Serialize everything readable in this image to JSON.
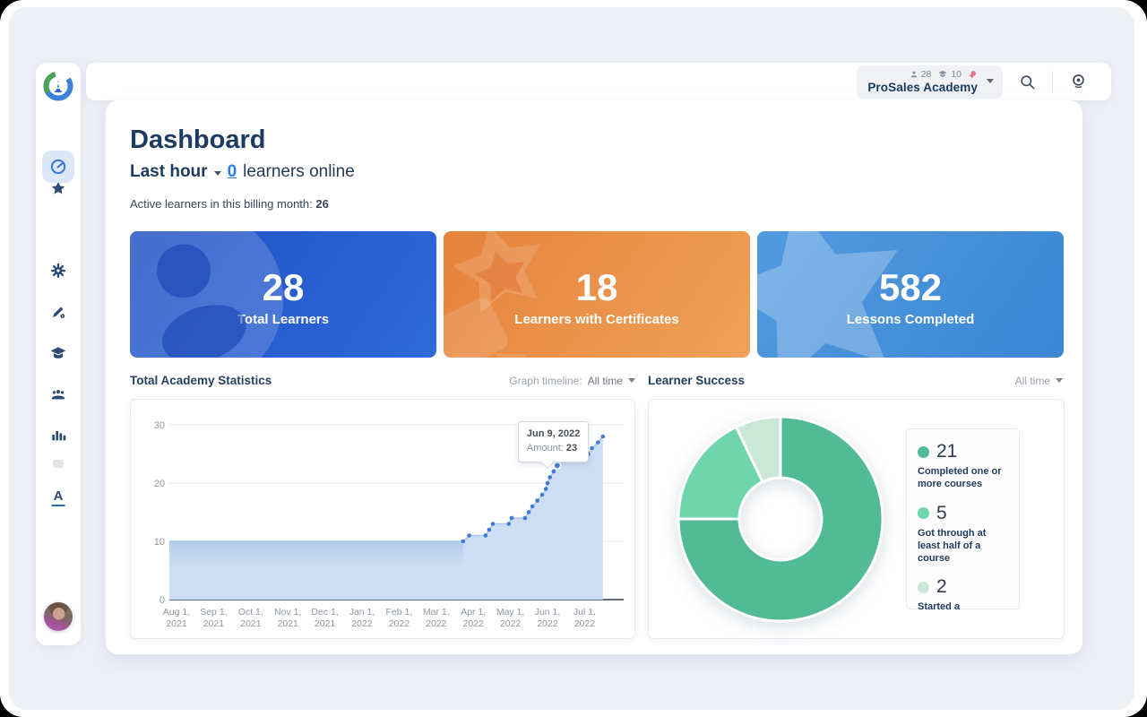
{
  "header": {
    "academy_name": "ProSales Academy",
    "learners_badge": "28",
    "courses_badge": "10",
    "icons": [
      "person-icon",
      "graduation-cap-icon",
      "certificate-ribbon-icon",
      "search-icon",
      "learner-preview-icon"
    ]
  },
  "sidebar": {
    "logo_letter": "A",
    "font_icon_letter": "A",
    "items": [
      {
        "icon": "logo"
      },
      {
        "icon": "star"
      },
      {
        "icon": "dashboard-gauge",
        "active": true
      },
      {
        "icon": "settings-gear"
      },
      {
        "icon": "customize-pen"
      },
      {
        "icon": "courses-graduation-cap"
      },
      {
        "icon": "learners-people"
      },
      {
        "icon": "reports-bar-chart"
      },
      {
        "icon": "faint-extra"
      },
      {
        "icon": "font-a"
      },
      {
        "icon": "user-avatar"
      }
    ]
  },
  "page": {
    "title": "Dashboard",
    "last_hour_label": "Last hour",
    "online_count": "0",
    "online_suffix": "learners online",
    "billing_label": "Active learners in this billing month:",
    "billing_value": "26"
  },
  "stat_cards": [
    {
      "value": "28",
      "label": "Total Learners",
      "icon": "person-icon",
      "gradient": [
        "#2050c4",
        "#2e6ada"
      ]
    },
    {
      "value": "18",
      "label": "Learners with Certificates",
      "icon": "certificate-icon",
      "gradient": [
        "#e5823b",
        "#f0a159"
      ]
    },
    {
      "value": "582",
      "label": "Lessons Completed",
      "icon": "star-icon",
      "gradient": [
        "#539bdf",
        "#3a86d4"
      ]
    }
  ],
  "sections": {
    "statistics_title": "Total Academy Statistics",
    "timeline_label": "Graph timeline:",
    "timeline_value": "All time",
    "success_title": "Learner Success",
    "success_timeline_value": "All time"
  },
  "tooltip": {
    "date": "Jun 9, 2022",
    "label": "Amount:",
    "value": "23"
  },
  "chart_data": [
    {
      "type": "area",
      "title": "Total Academy Statistics",
      "xlabel": "",
      "ylabel": "Amount",
      "ylim": [
        0,
        30
      ],
      "yticks": [
        0,
        10,
        20,
        30
      ],
      "grid": true,
      "fill_color": "#cdddf3",
      "band_color": "#b3cce9",
      "dot_color": "#3e7ad5",
      "xticks": [
        [
          "Aug 1,",
          "2021"
        ],
        [
          "Sep 1,",
          "2021"
        ],
        [
          "Oct 1,",
          "2021"
        ],
        [
          "Nov 1,",
          "2021"
        ],
        [
          "Dec 1,",
          "2021"
        ],
        [
          "Jan 1,",
          "2022"
        ],
        [
          "Feb 1,",
          "2022"
        ],
        [
          "Mar 1,",
          "2022"
        ],
        [
          "Apr 1,",
          "2022"
        ],
        [
          "May 1,",
          "2022"
        ],
        [
          "Jun 1,",
          "2022"
        ],
        [
          "Jul 1,",
          "2022"
        ]
      ],
      "points": [
        [
          "Aug 1, 2021",
          10
        ],
        [
          "Mar 23, 2022",
          10
        ],
        [
          "Mar 28, 2022",
          11
        ],
        [
          "Apr 11, 2022",
          11
        ],
        [
          "Apr 14, 2022",
          12
        ],
        [
          "Apr 17, 2022",
          13
        ],
        [
          "Apr 30, 2022",
          13
        ],
        [
          "May 2, 2022",
          14
        ],
        [
          "May 13, 2022",
          14
        ],
        [
          "May 16, 2022",
          15
        ],
        [
          "May 19, 2022",
          16
        ],
        [
          "May 23, 2022",
          17
        ],
        [
          "May 27, 2022",
          18
        ],
        [
          "May 30, 2022",
          19
        ],
        [
          "Jun 1, 2022",
          20
        ],
        [
          "Jun 3, 2022",
          21
        ],
        [
          "Jun 6, 2022",
          22
        ],
        [
          "Jun 9, 2022",
          23
        ],
        [
          "Jun 11, 2022",
          24
        ],
        [
          "Jun 14, 2022",
          25
        ],
        [
          "Jul 4, 2022",
          25
        ],
        [
          "Jul 7, 2022",
          26
        ],
        [
          "Jul 12, 2022",
          27
        ],
        [
          "Jul 16, 2022",
          28
        ]
      ],
      "highlight": {
        "date": "Jun 9, 2022",
        "amount": 23
      }
    },
    {
      "type": "donut",
      "title": "Learner Success",
      "legend_position": "right",
      "segments": [
        {
          "value": 21,
          "label": "Completed one or more courses",
          "color": "#52ba94"
        },
        {
          "value": 5,
          "label": "Got through at least half of a course",
          "color": "#6fd5ac"
        },
        {
          "value": 2,
          "label": "Started a",
          "color": "#cae8d8"
        }
      ]
    }
  ]
}
